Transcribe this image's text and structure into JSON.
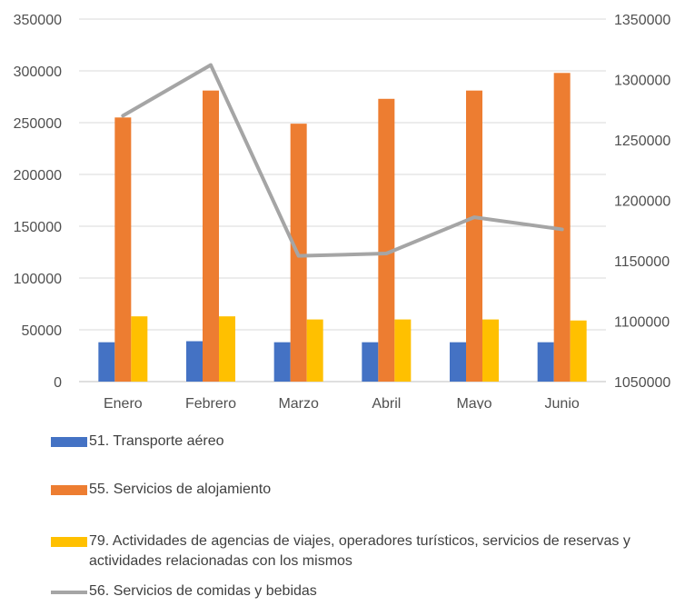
{
  "chart_data": {
    "type": "bar",
    "categories": [
      "Enero",
      "Febrero",
      "Marzo",
      "Abril",
      "Mayo",
      "Junio"
    ],
    "ylim": [
      0,
      350000
    ],
    "y_ticks": [
      "0",
      "50000",
      "100000",
      "150000",
      "200000",
      "250000",
      "300000",
      "350000"
    ],
    "y2lim": [
      1050000,
      1350000
    ],
    "y2_ticks": [
      "1050000",
      "1100000",
      "1150000",
      "1200000",
      "1250000",
      "1300000",
      "1350000"
    ],
    "grid": true,
    "legend_position": "bottom",
    "series": [
      {
        "name": "51. Transporte aéreo",
        "type": "bar",
        "axis": "left",
        "color": "#4472C4",
        "values": [
          38000,
          39000,
          38000,
          38000,
          38000,
          38000
        ]
      },
      {
        "name": "55. Servicios de alojamiento",
        "type": "bar",
        "axis": "left",
        "color": "#ED7D31",
        "values": [
          255000,
          281000,
          249000,
          273000,
          281000,
          298000
        ]
      },
      {
        "name": "79. Actividades de agencias de viajes, operadores turísticos, servicios de reservas y actividades relacionadas con los mismos",
        "type": "bar",
        "axis": "left",
        "color": "#FFC000",
        "values": [
          63000,
          63000,
          60000,
          60000,
          60000,
          59000
        ]
      },
      {
        "name": "56. Servicios de comidas y bebidas",
        "type": "line",
        "axis": "right",
        "color": "#A5A5A5",
        "values": [
          1270000,
          1312000,
          1154000,
          1156000,
          1186000,
          1176000
        ]
      }
    ]
  }
}
